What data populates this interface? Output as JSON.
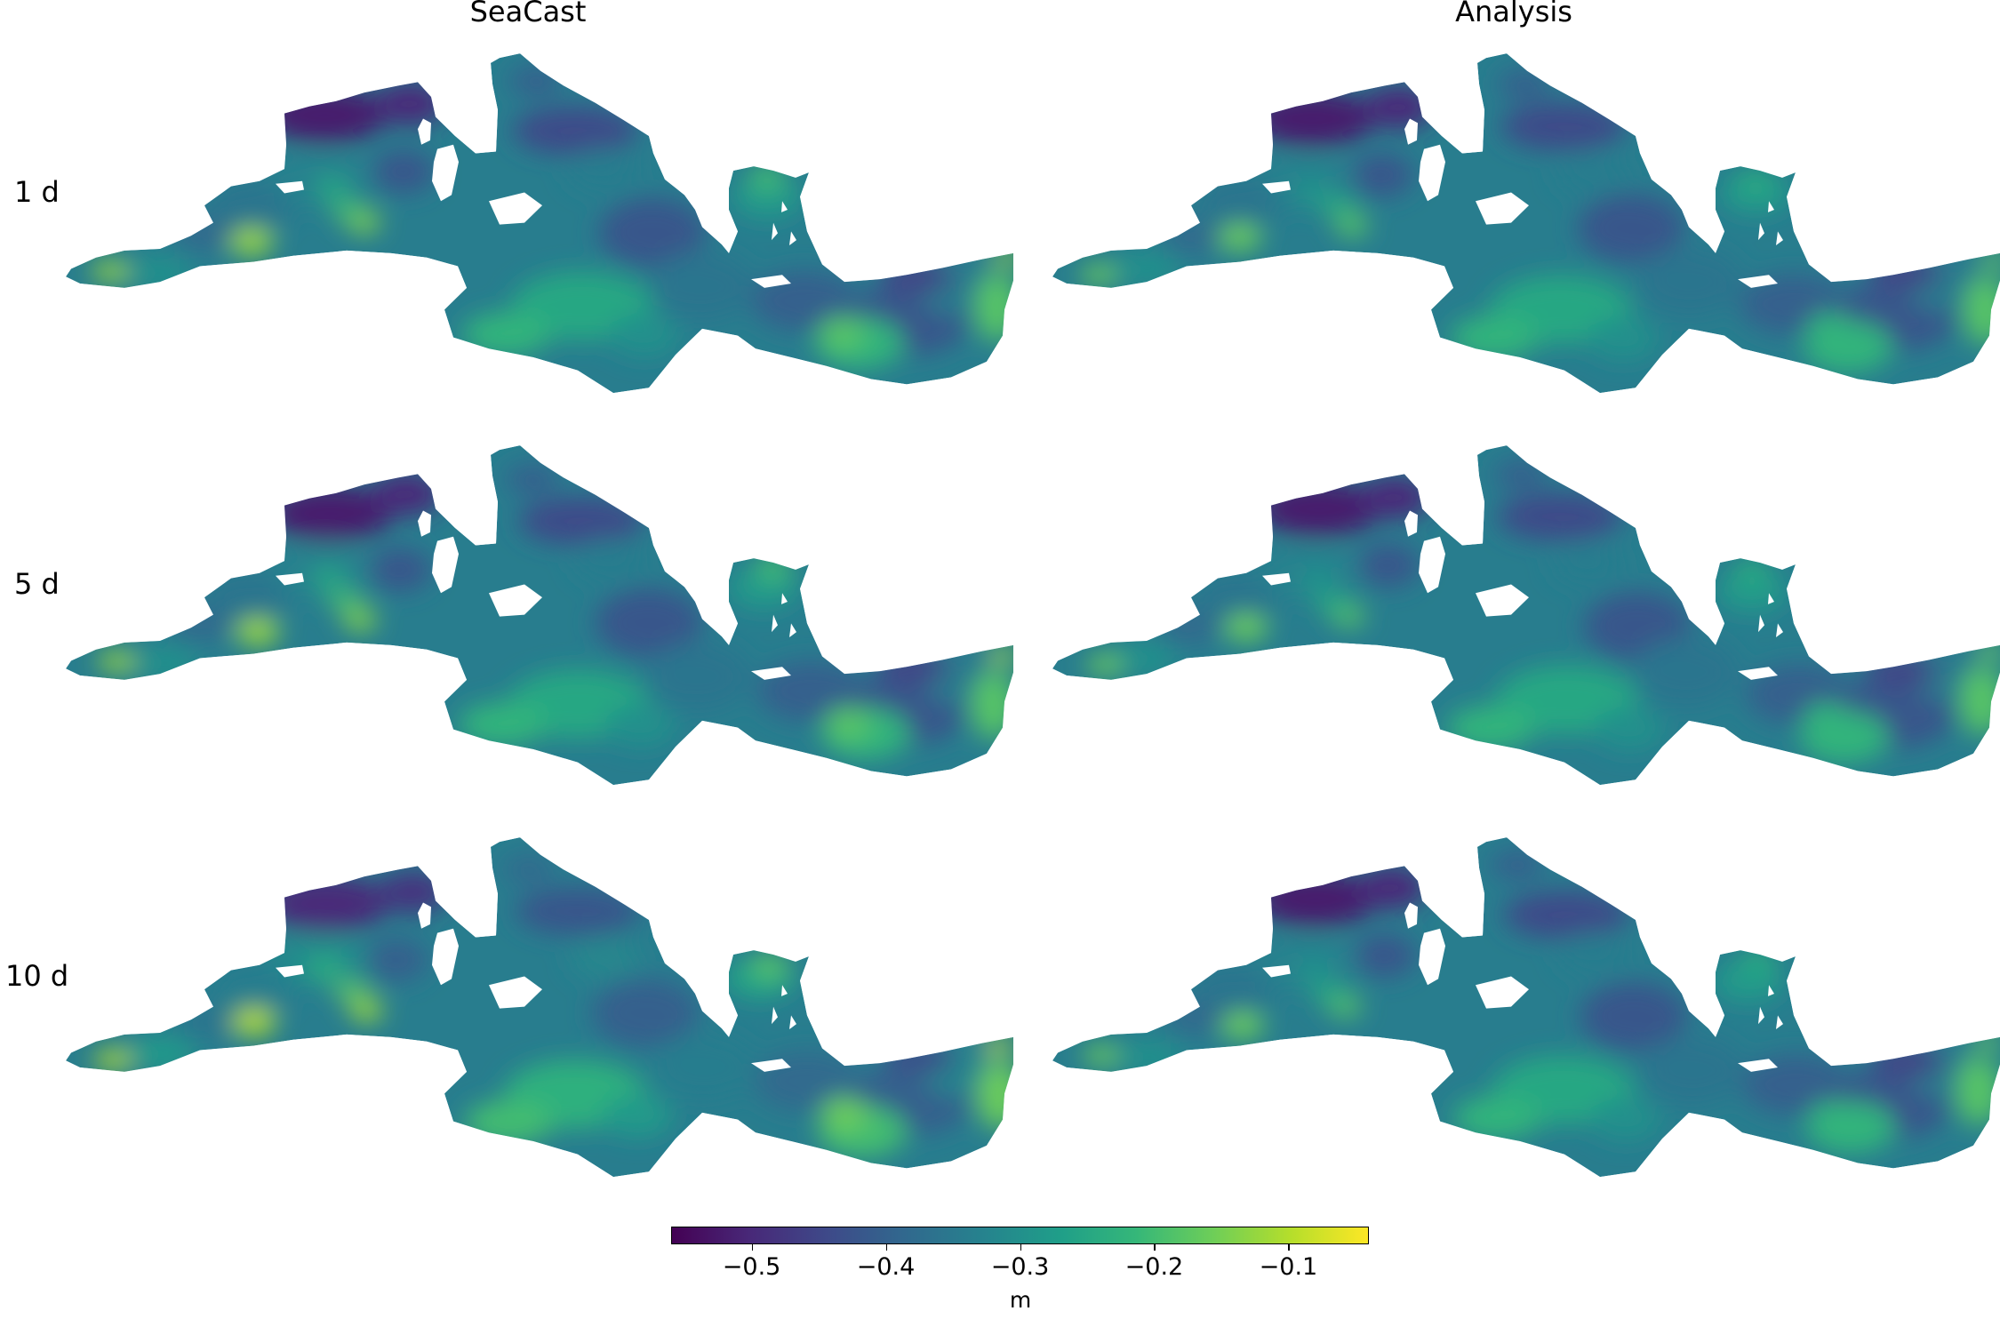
{
  "figure": {
    "columns": [
      "SeaCast",
      "Analysis"
    ],
    "rows": [
      "1 d",
      "5 d",
      "10 d"
    ]
  },
  "map": {
    "region": "Mediterranean Sea",
    "variable_unit": "m",
    "colormap": "viridis",
    "colormap_stops": [
      "#440154",
      "#482878",
      "#3e4989",
      "#31688e",
      "#26828e",
      "#1f9e89",
      "#35b779",
      "#6ece58",
      "#b5de2b",
      "#fde725"
    ]
  },
  "colorbar": {
    "min": -0.56,
    "max": -0.04,
    "ticks": [
      {
        "value": -0.5,
        "label": "−0.5"
      },
      {
        "value": -0.4,
        "label": "−0.4"
      },
      {
        "value": -0.3,
        "label": "−0.3"
      },
      {
        "value": -0.2,
        "label": "−0.2"
      },
      {
        "value": -0.1,
        "label": "−0.1"
      }
    ],
    "unit_label": "m"
  }
}
